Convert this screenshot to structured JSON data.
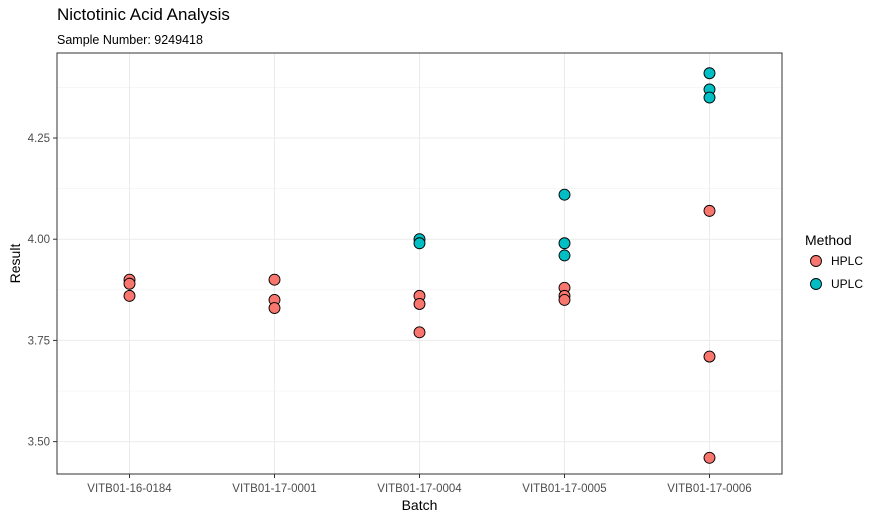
{
  "chart_data": {
    "type": "scatter",
    "title": "Nictotinic Acid Analysis",
    "subtitle": "Sample Number: 9249418",
    "xlabel": "Batch",
    "ylabel": "Result",
    "categories": [
      "VITB01-16-0184",
      "VITB01-17-0001",
      "VITB01-17-0004",
      "VITB01-17-0005",
      "VITB01-17-0006"
    ],
    "ylim": [
      3.42,
      4.46
    ],
    "yticks": [
      3.5,
      3.75,
      4.0,
      4.25
    ],
    "ytick_labels": [
      "3.50",
      "3.75",
      "4.00",
      "4.25"
    ],
    "grid": true,
    "legend": {
      "title": "Method",
      "position": "right"
    },
    "series": [
      {
        "name": "HPLC",
        "color": "#F8766D",
        "points": [
          {
            "x": "VITB01-16-0184",
            "y": 3.9
          },
          {
            "x": "VITB01-16-0184",
            "y": 3.89
          },
          {
            "x": "VITB01-16-0184",
            "y": 3.86
          },
          {
            "x": "VITB01-17-0001",
            "y": 3.9
          },
          {
            "x": "VITB01-17-0001",
            "y": 3.85
          },
          {
            "x": "VITB01-17-0001",
            "y": 3.83
          },
          {
            "x": "VITB01-17-0004",
            "y": 3.86
          },
          {
            "x": "VITB01-17-0004",
            "y": 3.84
          },
          {
            "x": "VITB01-17-0004",
            "y": 3.77
          },
          {
            "x": "VITB01-17-0005",
            "y": 3.88
          },
          {
            "x": "VITB01-17-0005",
            "y": 3.86
          },
          {
            "x": "VITB01-17-0005",
            "y": 3.85
          },
          {
            "x": "VITB01-17-0006",
            "y": 4.07
          },
          {
            "x": "VITB01-17-0006",
            "y": 3.71
          },
          {
            "x": "VITB01-17-0006",
            "y": 3.46
          }
        ]
      },
      {
        "name": "UPLC",
        "color": "#00BFC4",
        "points": [
          {
            "x": "VITB01-17-0004",
            "y": 4.0
          },
          {
            "x": "VITB01-17-0004",
            "y": 3.99
          },
          {
            "x": "VITB01-17-0005",
            "y": 4.11
          },
          {
            "x": "VITB01-17-0005",
            "y": 3.99
          },
          {
            "x": "VITB01-17-0005",
            "y": 3.96
          },
          {
            "x": "VITB01-17-0006",
            "y": 4.41
          },
          {
            "x": "VITB01-17-0006",
            "y": 4.37
          },
          {
            "x": "VITB01-17-0006",
            "y": 4.35
          }
        ]
      }
    ]
  }
}
